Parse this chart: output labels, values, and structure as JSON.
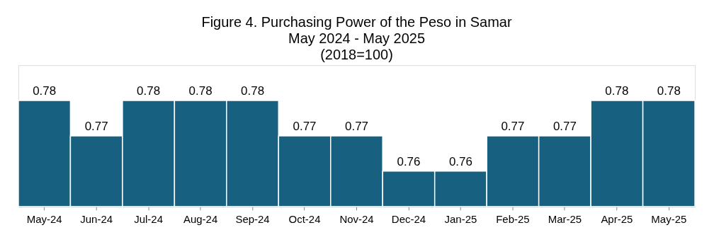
{
  "chart_data": {
    "type": "bar",
    "title": "Figure 4. Purchasing Power of the Peso in Samar\nMay 2024 - May 2025\n(2018=100)",
    "categories": [
      "May-24",
      "Jun-24",
      "Jul-24",
      "Aug-24",
      "Sep-24",
      "Oct-24",
      "Nov-24",
      "Dec-24",
      "Jan-25",
      "Feb-25",
      "Mar-25",
      "Apr-25",
      "May-25"
    ],
    "values": [
      0.78,
      0.77,
      0.78,
      0.78,
      0.78,
      0.77,
      0.77,
      0.76,
      0.76,
      0.77,
      0.77,
      0.78,
      0.78
    ],
    "color": "#18607f",
    "ylim": [
      0.75,
      0.79
    ],
    "data_labels": true,
    "tick_labels": "x"
  }
}
